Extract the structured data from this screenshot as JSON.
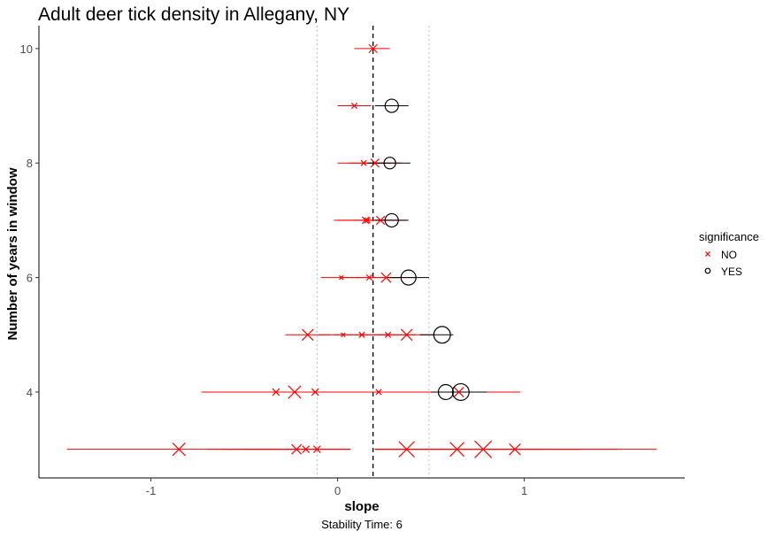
{
  "chart_data": {
    "type": "scatter",
    "title": "Adult deer tick density in Allegany, NY",
    "xlabel": "slope",
    "ylabel": "Number of years in window",
    "caption": "Stability Time: 6",
    "xlim": [
      -1.6,
      1.86
    ],
    "ylim": [
      2.5,
      10.4
    ],
    "x_ticks": [
      -1,
      0,
      1
    ],
    "y_ticks": [
      4,
      6,
      8,
      10
    ],
    "reference_lines": {
      "mean": 0.19,
      "lower": -0.11,
      "upper": 0.49
    },
    "grid": false,
    "legend": {
      "title": "significance",
      "position": "right",
      "entries": [
        {
          "label": "NO",
          "shape": "cross",
          "color": "#ff0000"
        },
        {
          "label": "YES",
          "shape": "circle",
          "color": "#000000"
        }
      ]
    },
    "colors": {
      "NO": "#ff0000",
      "YES": "#000000"
    },
    "points": [
      {
        "window": 10,
        "slope": 0.19,
        "lo": 0.09,
        "hi": 0.28,
        "significance": "NO",
        "size": 4
      },
      {
        "window": 9,
        "slope": 0.09,
        "lo": 0.0,
        "hi": 0.18,
        "significance": "NO",
        "size": 2
      },
      {
        "window": 9,
        "slope": 0.29,
        "lo": 0.2,
        "hi": 0.38,
        "significance": "YES",
        "size": 6
      },
      {
        "window": 8,
        "slope": 0.14,
        "lo": 0.0,
        "hi": 0.28,
        "significance": "NO",
        "size": 2
      },
      {
        "window": 8,
        "slope": 0.2,
        "lo": 0.06,
        "hi": 0.34,
        "significance": "NO",
        "size": 4
      },
      {
        "window": 8,
        "slope": 0.28,
        "lo": 0.16,
        "hi": 0.39,
        "significance": "YES",
        "size": 5
      },
      {
        "window": 7,
        "slope": 0.15,
        "lo": -0.02,
        "hi": 0.32,
        "significance": "NO",
        "size": 3
      },
      {
        "window": 7,
        "slope": 0.16,
        "lo": 0.0,
        "hi": 0.32,
        "significance": "NO",
        "size": 2
      },
      {
        "window": 7,
        "slope": 0.23,
        "lo": 0.09,
        "hi": 0.37,
        "significance": "NO",
        "size": 4
      },
      {
        "window": 7,
        "slope": 0.29,
        "lo": 0.2,
        "hi": 0.38,
        "significance": "YES",
        "size": 6
      },
      {
        "window": 6,
        "slope": 0.02,
        "lo": -0.09,
        "hi": 0.12,
        "significance": "NO",
        "size": 1
      },
      {
        "window": 6,
        "slope": 0.17,
        "lo": 0.02,
        "hi": 0.33,
        "significance": "NO",
        "size": 2
      },
      {
        "window": 6,
        "slope": 0.26,
        "lo": 0.1,
        "hi": 0.42,
        "significance": "NO",
        "size": 5
      },
      {
        "window": 6,
        "slope": 0.38,
        "lo": 0.27,
        "hi": 0.49,
        "significance": "YES",
        "size": 7
      },
      {
        "window": 5,
        "slope": -0.16,
        "lo": -0.28,
        "hi": -0.04,
        "significance": "NO",
        "size": 6
      },
      {
        "window": 5,
        "slope": 0.03,
        "lo": -0.1,
        "hi": 0.16,
        "significance": "NO",
        "size": 1
      },
      {
        "window": 5,
        "slope": 0.13,
        "lo": -0.02,
        "hi": 0.28,
        "significance": "NO",
        "size": 2
      },
      {
        "window": 5,
        "slope": 0.27,
        "lo": 0.12,
        "hi": 0.42,
        "significance": "NO",
        "size": 2
      },
      {
        "window": 5,
        "slope": 0.37,
        "lo": 0.22,
        "hi": 0.52,
        "significance": "NO",
        "size": 6
      },
      {
        "window": 5,
        "slope": 0.56,
        "lo": 0.44,
        "hi": 0.62,
        "significance": "YES",
        "size": 8
      },
      {
        "window": 4,
        "slope": -0.33,
        "lo": -0.73,
        "hi": 0.07,
        "significance": "NO",
        "size": 3
      },
      {
        "window": 4,
        "slope": -0.23,
        "lo": -0.56,
        "hi": 0.1,
        "significance": "NO",
        "size": 7
      },
      {
        "window": 4,
        "slope": -0.12,
        "lo": -0.4,
        "hi": 0.17,
        "significance": "NO",
        "size": 3
      },
      {
        "window": 4,
        "slope": 0.22,
        "lo": -0.1,
        "hi": 0.55,
        "significance": "NO",
        "size": 2
      },
      {
        "window": 4,
        "slope": 0.58,
        "lo": 0.44,
        "hi": 0.72,
        "significance": "YES",
        "size": 7
      },
      {
        "window": 4,
        "slope": 0.65,
        "lo": 0.3,
        "hi": 0.98,
        "significance": "NO",
        "size": 5
      },
      {
        "window": 4,
        "slope": 0.66,
        "lo": 0.5,
        "hi": 0.8,
        "significance": "YES",
        "size": 8
      },
      {
        "window": 3,
        "slope": -0.85,
        "lo": -1.45,
        "hi": -0.25,
        "significance": "NO",
        "size": 7
      },
      {
        "window": 3,
        "slope": -0.22,
        "lo": -0.7,
        "hi": 0.07,
        "significance": "NO",
        "size": 5
      },
      {
        "window": 3,
        "slope": -0.17,
        "lo": -0.62,
        "hi": 0.07,
        "significance": "NO",
        "size": 3
      },
      {
        "window": 3,
        "slope": -0.11,
        "lo": -0.5,
        "hi": 0.07,
        "significance": "NO",
        "size": 3
      },
      {
        "window": 3,
        "slope": 0.37,
        "lo": 0.2,
        "hi": 1.1,
        "significance": "NO",
        "size": 9
      },
      {
        "window": 3,
        "slope": 0.64,
        "lo": 0.2,
        "hi": 1.3,
        "significance": "NO",
        "size": 8
      },
      {
        "window": 3,
        "slope": 0.78,
        "lo": 0.2,
        "hi": 1.5,
        "significance": "NO",
        "size": 10
      },
      {
        "window": 3,
        "slope": 0.95,
        "lo": 0.2,
        "hi": 1.71,
        "significance": "NO",
        "size": 6
      }
    ]
  }
}
